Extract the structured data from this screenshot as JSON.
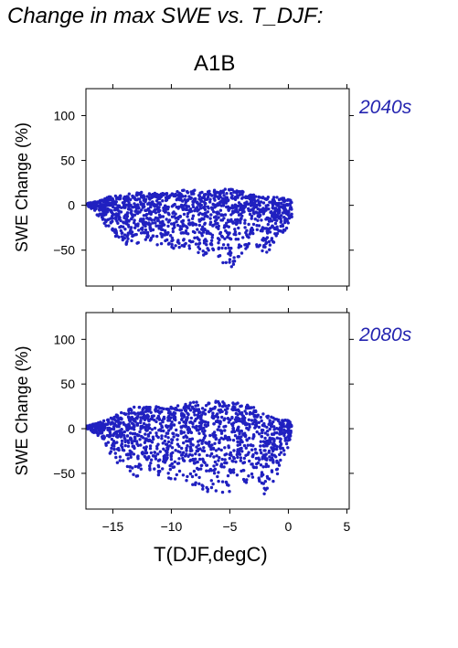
{
  "page": {
    "title": "Change in max SWE vs. T_DJF:",
    "scenario": "A1B"
  },
  "colors": {
    "points": "#2020c0",
    "period_label": "#2424b0",
    "axis": "#000000"
  },
  "chart_data": [
    {
      "type": "scatter",
      "period": "2040s",
      "xlabel": "T(DJF,degC)",
      "ylabel": "SWE Change (%)",
      "xlim": [
        -17.3,
        5.2
      ],
      "ylim": [
        -90,
        130
      ],
      "xticks": [
        -15,
        -10,
        -5,
        0,
        5
      ],
      "xtick_labels": [
        "−15",
        "−10",
        "−5",
        "0",
        "5"
      ],
      "yticks": [
        100,
        50,
        0,
        -50
      ],
      "ytick_labels": [
        "100",
        "50",
        "0",
        "−50"
      ],
      "grid": false,
      "envelope": [
        {
          "x": -17.2,
          "lo": 0,
          "hi": 2
        },
        {
          "x": -16.0,
          "lo": -15,
          "hi": 6
        },
        {
          "x": -15.0,
          "lo": -35,
          "hi": 12
        },
        {
          "x": -14.0,
          "lo": -45,
          "hi": 14
        },
        {
          "x": -13.0,
          "lo": -48,
          "hi": 15
        },
        {
          "x": -12.0,
          "lo": -42,
          "hi": 14
        },
        {
          "x": -11.0,
          "lo": -45,
          "hi": 13
        },
        {
          "x": -10.0,
          "lo": -52,
          "hi": 14
        },
        {
          "x": -9.0,
          "lo": -55,
          "hi": 17
        },
        {
          "x": -8.0,
          "lo": -60,
          "hi": 20
        },
        {
          "x": -7.0,
          "lo": -55,
          "hi": 16
        },
        {
          "x": -6.0,
          "lo": -60,
          "hi": 18
        },
        {
          "x": -5.0,
          "lo": -72,
          "hi": 18
        },
        {
          "x": -4.0,
          "lo": -55,
          "hi": 16
        },
        {
          "x": -3.0,
          "lo": -40,
          "hi": 12
        },
        {
          "x": -2.0,
          "lo": -62,
          "hi": 10
        },
        {
          "x": -1.0,
          "lo": -40,
          "hi": 9
        },
        {
          "x": 0.0,
          "lo": -25,
          "hi": 8
        },
        {
          "x": 0.3,
          "lo": -15,
          "hi": 4
        }
      ]
    },
    {
      "type": "scatter",
      "period": "2080s",
      "xlabel": "T(DJF,degC)",
      "ylabel": "SWE Change (%)",
      "xlim": [
        -17.3,
        5.2
      ],
      "ylim": [
        -90,
        130
      ],
      "xticks": [
        -15,
        -10,
        -5,
        0,
        5
      ],
      "xtick_labels": [
        "−15",
        "−10",
        "−5",
        "0",
        "5"
      ],
      "yticks": [
        100,
        50,
        0,
        -50
      ],
      "ytick_labels": [
        "100",
        "50",
        "0",
        "−50"
      ],
      "grid": false,
      "envelope": [
        {
          "x": -17.2,
          "lo": 0,
          "hi": 3
        },
        {
          "x": -16.0,
          "lo": -10,
          "hi": 8
        },
        {
          "x": -15.0,
          "lo": -35,
          "hi": 14
        },
        {
          "x": -14.0,
          "lo": -45,
          "hi": 20
        },
        {
          "x": -13.0,
          "lo": -55,
          "hi": 25
        },
        {
          "x": -12.0,
          "lo": -45,
          "hi": 24
        },
        {
          "x": -11.0,
          "lo": -55,
          "hi": 25
        },
        {
          "x": -10.0,
          "lo": -58,
          "hi": 25
        },
        {
          "x": -9.0,
          "lo": -60,
          "hi": 27
        },
        {
          "x": -8.0,
          "lo": -65,
          "hi": 30
        },
        {
          "x": -7.0,
          "lo": -72,
          "hi": 28
        },
        {
          "x": -6.0,
          "lo": -70,
          "hi": 32
        },
        {
          "x": -5.0,
          "lo": -75,
          "hi": 30
        },
        {
          "x": -4.0,
          "lo": -60,
          "hi": 28
        },
        {
          "x": -3.0,
          "lo": -65,
          "hi": 25
        },
        {
          "x": -2.0,
          "lo": -75,
          "hi": 15
        },
        {
          "x": -1.0,
          "lo": -60,
          "hi": 12
        },
        {
          "x": 0.0,
          "lo": -20,
          "hi": 10
        },
        {
          "x": 0.3,
          "lo": -12,
          "hi": 5
        }
      ]
    }
  ]
}
